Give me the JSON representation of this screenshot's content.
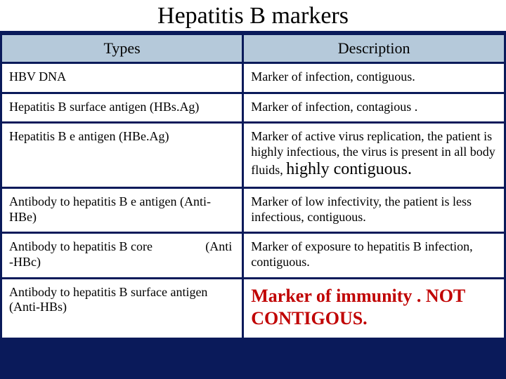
{
  "title": "Hepatitis B markers",
  "columns": [
    "Types",
    "Description"
  ],
  "rows": [
    {
      "type": "HBV DNA",
      "desc": "Marker of infection, contiguous."
    },
    {
      "type": "Hepatitis B surface antigen (HBs.Ag)",
      "desc": "Marker of infection, contagious ."
    },
    {
      "type": "Hepatitis B e antigen (HBe.Ag)",
      "desc_pre": "Marker of active virus replication, the patient is highly infectious, the virus is present in all body fluids, ",
      "desc_emph": " highly contiguous."
    },
    {
      "type": "Antibody to hepatitis B e antigen (Anti-HBe)",
      "desc": "Marker of low infectivity, the patient is less infectious, contiguous."
    },
    {
      "type_pre": "Antibody to hepatitis B core",
      "type_right": "(Anti",
      "type_post": "-HBc)",
      "desc": "Marker of exposure to hepatitis B infection, contiguous."
    },
    {
      "type": "Antibody to hepatitis B surface antigen (Anti-HBs)",
      "desc_red": "Marker of immunity . NOT CONTIGOUS."
    }
  ],
  "colors": {
    "background": "#0a1a5a",
    "header_bg": "#b5c9da",
    "cell_bg": "#ffffff",
    "emph_red": "#c00000"
  }
}
